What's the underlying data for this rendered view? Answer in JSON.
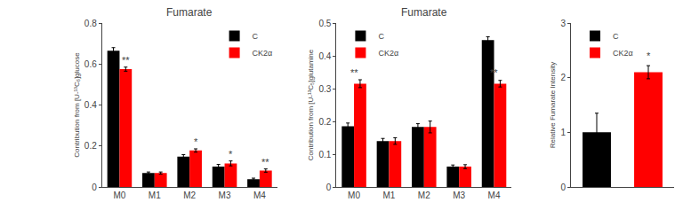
{
  "chart_data": [
    {
      "type": "bar",
      "title": "Fumarate",
      "ylabel": "Contribution from [U-¹³C₆]glucose",
      "categories": [
        "M0",
        "M1",
        "M2",
        "M3",
        "M4"
      ],
      "series": [
        {
          "name": "C",
          "color": "#000000",
          "values": [
            0.665,
            0.068,
            0.148,
            0.1,
            0.038
          ],
          "errors": [
            0.015,
            0.005,
            0.01,
            0.01,
            0.005
          ]
        },
        {
          "name": "CK2α",
          "color": "#ff0000",
          "values": [
            0.575,
            0.068,
            0.178,
            0.115,
            0.08
          ],
          "errors": [
            0.01,
            0.005,
            0.008,
            0.012,
            0.008
          ]
        }
      ],
      "ylim": [
        0,
        0.8
      ],
      "yticks": [
        0,
        0.2,
        0.4,
        0.6,
        0.8
      ],
      "grid": false,
      "legend": "upper right",
      "annotations": [
        {
          "text": "**",
          "category": "M0",
          "series": "CK2α",
          "y": 0.585
        },
        {
          "text": "*",
          "category": "M2",
          "series": "CK2α",
          "y": 0.188
        },
        {
          "text": "*",
          "category": "M3",
          "series": "CK2α",
          "y": 0.127
        },
        {
          "text": "**",
          "category": "M4",
          "series": "CK2α",
          "y": 0.088
        }
      ]
    },
    {
      "type": "bar",
      "title": "Fumarate",
      "ylabel": "Contribution from [U-¹³C₅]glutamine",
      "categories": [
        "M0",
        "M1",
        "M2",
        "M3",
        "M4"
      ],
      "series": [
        {
          "name": "C",
          "color": "#000000",
          "values": [
            0.185,
            0.14,
            0.183,
            0.062,
            0.448
          ],
          "errors": [
            0.01,
            0.008,
            0.01,
            0.005,
            0.01
          ]
        },
        {
          "name": "CK2α",
          "color": "#ff0000",
          "values": [
            0.315,
            0.14,
            0.183,
            0.062,
            0.315
          ],
          "errors": [
            0.012,
            0.01,
            0.018,
            0.006,
            0.01
          ]
        }
      ],
      "ylim": [
        0,
        0.5
      ],
      "yticks": [
        0,
        0.1,
        0.2,
        0.3,
        0.4,
        0.5
      ],
      "grid": false,
      "legend": "upper left",
      "annotations": [
        {
          "text": "**",
          "category": "M0",
          "y": 0.327
        },
        {
          "text": "**",
          "category": "M4",
          "y": 0.328
        }
      ]
    },
    {
      "type": "bar",
      "ylabel": "Relative Fumarate Intensity",
      "categories": [
        null,
        null
      ],
      "series": [
        {
          "name": "C",
          "color": "#000000",
          "values": [
            1.0,
            null
          ],
          "errors": [
            0.35,
            null
          ]
        },
        {
          "name": "CK2α",
          "color": "#ff0000",
          "values": [
            null,
            2.1
          ],
          "errors": [
            null,
            0.12
          ]
        }
      ],
      "ylim": [
        0,
        3
      ],
      "yticks": [
        0,
        1,
        2,
        3
      ],
      "grid": false,
      "legend": "upper left",
      "tick_labels": "y",
      "annotations": [
        {
          "text": "*",
          "x": 1,
          "y": 2.27
        }
      ]
    }
  ]
}
